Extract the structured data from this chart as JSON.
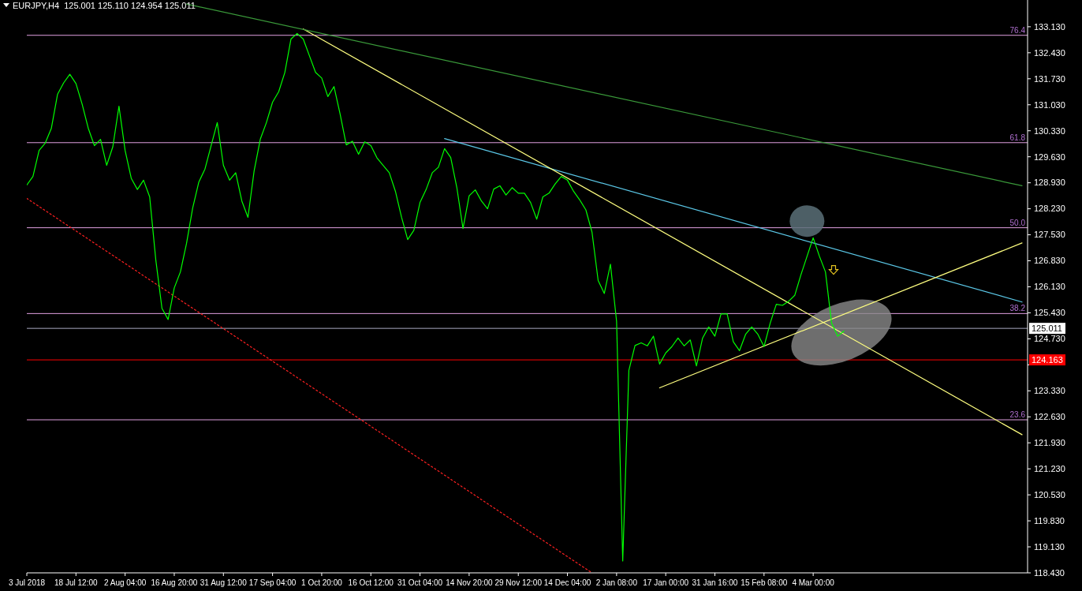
{
  "chart_data": {
    "type": "line",
    "title": "EURJPY,H4  125.001 125.110 124.954 125.011",
    "categories": [
      "3 Jul 2018",
      null,
      null,
      null,
      null,
      null,
      null,
      null,
      "18 Jul 12:00",
      null,
      null,
      null,
      null,
      null,
      null,
      null,
      "2 Aug 04:00",
      null,
      null,
      null,
      null,
      null,
      null,
      null,
      "16 Aug 20:00",
      null,
      null,
      null,
      null,
      null,
      null,
      null,
      "31 Aug 12:00",
      null,
      null,
      null,
      null,
      null,
      null,
      null,
      "17 Sep 04:00",
      null,
      null,
      null,
      null,
      null,
      null,
      null,
      "1 Oct 20:00",
      null,
      null,
      null,
      null,
      null,
      null,
      null,
      "16 Oct 12:00",
      null,
      null,
      null,
      null,
      null,
      null,
      null,
      "31 Oct 04:00",
      null,
      null,
      null,
      null,
      null,
      null,
      null,
      "14 Nov 20:00",
      null,
      null,
      null,
      null,
      null,
      null,
      null,
      "29 Nov 12:00",
      null,
      null,
      null,
      null,
      null,
      null,
      null,
      "14 Dec 04:00",
      null,
      null,
      null,
      null,
      null,
      null,
      null,
      "2 Jan 08:00",
      null,
      null,
      null,
      null,
      null,
      null,
      null,
      "17 Jan 00:00",
      null,
      null,
      null,
      null,
      null,
      null,
      null,
      "31 Jan 16:00",
      null,
      null,
      null,
      null,
      null,
      null,
      null,
      "15 Feb 08:00",
      null,
      null,
      null,
      null,
      null,
      null,
      null,
      "4 Mar 00:00",
      null,
      null,
      null,
      null,
      null,
      null,
      null,
      null,
      null,
      null,
      null,
      null,
      null,
      null,
      null,
      null,
      null,
      null,
      null,
      null,
      null,
      null,
      null,
      null,
      null,
      null,
      null,
      null,
      null,
      null,
      null,
      null,
      null,
      null
    ],
    "ylim": [
      118.43,
      133.85
    ],
    "yticks": [
      {
        "value": 133.13,
        "label": "133.130"
      },
      {
        "value": 132.43,
        "label": "132.430"
      },
      {
        "value": 131.73,
        "label": "131.730"
      },
      {
        "value": 131.03,
        "label": "131.030"
      },
      {
        "value": 130.33,
        "label": "130.330"
      },
      {
        "value": 129.63,
        "label": "129.630"
      },
      {
        "value": 128.93,
        "label": "128.930"
      },
      {
        "value": 128.23,
        "label": "128.230"
      },
      {
        "value": 127.53,
        "label": "127.530"
      },
      {
        "value": 126.83,
        "label": "126.830"
      },
      {
        "value": 126.13,
        "label": "126.130"
      },
      {
        "value": 125.43,
        "label": "125.430"
      },
      {
        "value": 124.73,
        "label": "124.730"
      },
      {
        "value": 124.03,
        "label": null
      },
      {
        "value": 123.33,
        "label": "123.330"
      },
      {
        "value": 122.63,
        "label": "122.630"
      },
      {
        "value": 121.93,
        "label": "121.930"
      },
      {
        "value": 121.23,
        "label": "121.230"
      },
      {
        "value": 120.53,
        "label": "120.530"
      },
      {
        "value": 119.83,
        "label": "119.830"
      },
      {
        "value": 119.13,
        "label": "119.130"
      },
      {
        "value": 118.43,
        "label": "118.430"
      }
    ],
    "series": [
      {
        "color": "#00ff00",
        "values": [
          128.87,
          129.1,
          129.8,
          130.0,
          130.4,
          131.31,
          131.62,
          131.85,
          131.6,
          131.05,
          130.4,
          129.93,
          130.1,
          129.4,
          129.9,
          130.99,
          129.8,
          129.05,
          128.75,
          129.0,
          128.55,
          126.85,
          125.55,
          125.25,
          126.1,
          126.53,
          127.3,
          128.25,
          128.95,
          129.3,
          129.93,
          130.55,
          129.4,
          129.0,
          129.2,
          128.44,
          128.0,
          129.25,
          130.1,
          130.55,
          131.1,
          131.38,
          131.9,
          132.8,
          132.95,
          132.8,
          132.35,
          131.9,
          131.75,
          131.25,
          131.52,
          130.78,
          129.95,
          130.05,
          129.7,
          130.03,
          129.93,
          129.6,
          129.4,
          129.2,
          128.7,
          128.0,
          127.4,
          127.65,
          128.4,
          128.75,
          129.2,
          129.35,
          129.85,
          129.61,
          128.8,
          127.7,
          128.58,
          128.74,
          128.44,
          128.23,
          128.76,
          128.85,
          128.6,
          128.8,
          128.65,
          128.65,
          128.4,
          127.95,
          128.55,
          128.65,
          128.9,
          129.1,
          129.0,
          128.7,
          128.47,
          128.2,
          127.6,
          126.3,
          125.95,
          126.74,
          125.2,
          118.75,
          123.88,
          124.55,
          124.62,
          124.54,
          124.8,
          124.05,
          124.35,
          124.52,
          124.75,
          124.54,
          124.7,
          124.0,
          124.75,
          125.05,
          124.8,
          125.4,
          125.4,
          124.65,
          124.41,
          124.85,
          125.05,
          124.85,
          124.52,
          125.15,
          125.66,
          125.63,
          125.74,
          125.9,
          126.45,
          126.95,
          127.45,
          126.96,
          126.53,
          125.15,
          124.8,
          124.94,
          null,
          null,
          null,
          null,
          null,
          null,
          null,
          null,
          null,
          null,
          null,
          null,
          null,
          null,
          null,
          null,
          null,
          null,
          null,
          null,
          null,
          null,
          null,
          null,
          null,
          null,
          null,
          null,
          null
        ]
      },
      {
        "color": "#3a9a3a",
        "values": [
          null,
          null,
          null,
          null,
          null,
          null,
          null,
          null,
          null,
          null,
          null,
          null,
          null,
          null,
          null,
          null,
          null,
          null,
          null,
          null,
          null,
          null,
          null,
          null,
          null,
          null,
          133.74,
          null,
          null,
          null,
          null,
          null,
          null,
          null,
          null,
          null,
          null,
          null,
          null,
          null,
          null,
          null,
          null,
          null,
          null,
          null,
          null,
          null,
          null,
          null,
          null,
          null,
          null,
          null,
          null,
          null,
          null,
          null,
          null,
          null,
          null,
          null,
          null,
          null,
          null,
          null,
          null,
          null,
          null,
          null,
          null,
          null,
          null,
          null,
          null,
          null,
          null,
          null,
          null,
          null,
          null,
          null,
          null,
          null,
          null,
          null,
          null,
          null,
          null,
          null,
          null,
          null,
          null,
          null,
          null,
          null,
          null,
          null,
          null,
          null,
          null,
          null,
          null,
          null,
          null,
          null,
          null,
          null,
          null,
          null,
          null,
          null,
          null,
          null,
          null,
          null,
          null,
          null,
          null,
          null,
          null,
          null,
          null,
          null,
          null,
          null,
          null,
          null,
          null,
          null,
          null,
          null,
          null,
          null,
          null,
          null,
          null,
          null,
          null,
          null,
          null,
          null,
          null,
          null,
          null,
          null,
          null,
          null,
          null,
          null,
          null,
          null,
          null,
          null,
          null,
          null,
          null,
          null,
          null,
          null,
          null,
          null,
          128.85
        ]
      },
      {
        "color": "#ffff80",
        "values": [
          null,
          null,
          null,
          null,
          null,
          null,
          null,
          null,
          null,
          null,
          null,
          null,
          null,
          null,
          null,
          null,
          null,
          null,
          null,
          null,
          null,
          null,
          null,
          null,
          null,
          null,
          null,
          null,
          null,
          null,
          null,
          null,
          null,
          null,
          null,
          null,
          null,
          null,
          null,
          null,
          null,
          null,
          null,
          null,
          null,
          133.07,
          null,
          null,
          null,
          null,
          null,
          null,
          null,
          null,
          null,
          null,
          null,
          null,
          null,
          null,
          null,
          null,
          null,
          null,
          null,
          null,
          null,
          null,
          null,
          null,
          null,
          null,
          null,
          null,
          null,
          null,
          null,
          null,
          null,
          null,
          null,
          null,
          null,
          null,
          null,
          null,
          null,
          null,
          null,
          null,
          null,
          null,
          null,
          null,
          null,
          null,
          null,
          null,
          null,
          null,
          null,
          null,
          null,
          null,
          null,
          null,
          null,
          null,
          null,
          null,
          null,
          null,
          null,
          null,
          null,
          null,
          null,
          null,
          null,
          null,
          null,
          null,
          null,
          null,
          null,
          null,
          null,
          null,
          null,
          null,
          null,
          null,
          null,
          null,
          null,
          null,
          null,
          null,
          null,
          null,
          null,
          null,
          null,
          null,
          null,
          null,
          null,
          null,
          null,
          null,
          null,
          null,
          null,
          null,
          null,
          null,
          null,
          null,
          null,
          null,
          null,
          null,
          122.15
        ]
      },
      {
        "color": "#ffff80",
        "values": [
          null,
          null,
          null,
          null,
          null,
          null,
          null,
          null,
          null,
          null,
          null,
          null,
          null,
          null,
          null,
          null,
          null,
          null,
          null,
          null,
          null,
          null,
          null,
          null,
          null,
          null,
          null,
          null,
          null,
          null,
          null,
          null,
          null,
          null,
          null,
          null,
          null,
          null,
          null,
          null,
          null,
          null,
          null,
          null,
          null,
          null,
          null,
          null,
          null,
          null,
          null,
          null,
          null,
          null,
          null,
          null,
          null,
          null,
          null,
          null,
          null,
          null,
          null,
          null,
          null,
          null,
          null,
          null,
          null,
          null,
          null,
          null,
          null,
          null,
          null,
          null,
          null,
          null,
          null,
          null,
          null,
          null,
          null,
          null,
          null,
          null,
          null,
          null,
          null,
          null,
          null,
          null,
          null,
          null,
          null,
          null,
          null,
          null,
          null,
          null,
          null,
          null,
          null,
          123.41,
          null,
          null,
          null,
          null,
          null,
          null,
          null,
          null,
          null,
          null,
          null,
          null,
          null,
          null,
          null,
          null,
          null,
          null,
          null,
          null,
          null,
          null,
          null,
          null,
          null,
          null,
          null,
          null,
          null,
          null,
          null,
          null,
          null,
          null,
          null,
          null,
          null,
          null,
          null,
          null,
          null,
          null,
          null,
          null,
          null,
          null,
          null,
          null,
          null,
          null,
          null,
          null,
          null,
          null,
          null,
          null,
          null,
          null,
          127.31
        ]
      },
      {
        "color": "#5bc8e8",
        "values": [
          null,
          null,
          null,
          null,
          null,
          null,
          null,
          null,
          null,
          null,
          null,
          null,
          null,
          null,
          null,
          null,
          null,
          null,
          null,
          null,
          null,
          null,
          null,
          null,
          null,
          null,
          null,
          null,
          null,
          null,
          null,
          null,
          null,
          null,
          null,
          null,
          null,
          null,
          null,
          null,
          null,
          null,
          null,
          null,
          null,
          null,
          null,
          null,
          null,
          null,
          null,
          null,
          null,
          null,
          null,
          null,
          null,
          null,
          null,
          null,
          null,
          null,
          null,
          null,
          null,
          null,
          null,
          null,
          130.12,
          null,
          null,
          null,
          null,
          null,
          null,
          null,
          null,
          null,
          null,
          null,
          null,
          null,
          null,
          null,
          null,
          null,
          null,
          null,
          null,
          null,
          null,
          null,
          null,
          null,
          null,
          null,
          null,
          null,
          null,
          null,
          null,
          null,
          null,
          null,
          null,
          null,
          null,
          null,
          null,
          null,
          null,
          null,
          null,
          null,
          null,
          null,
          null,
          null,
          null,
          null,
          null,
          null,
          null,
          null,
          null,
          null,
          null,
          null,
          null,
          null,
          null,
          null,
          null,
          null,
          null,
          null,
          null,
          null,
          null,
          null,
          null,
          null,
          null,
          null,
          null,
          null,
          null,
          null,
          null,
          null,
          null,
          null,
          null,
          null,
          null,
          null,
          null,
          null,
          null,
          null,
          null,
          null,
          125.72
        ]
      },
      {
        "color": "#ff2020",
        "line_style": "dotted",
        "values": [
          128.51,
          null,
          null,
          null,
          null,
          null,
          null,
          null,
          null,
          null,
          null,
          null,
          null,
          null,
          null,
          null,
          null,
          null,
          null,
          null,
          null,
          null,
          null,
          null,
          null,
          null,
          null,
          null,
          null,
          null,
          null,
          null,
          null,
          null,
          null,
          null,
          null,
          null,
          null,
          null,
          null,
          null,
          null,
          null,
          null,
          null,
          null,
          null,
          null,
          null,
          null,
          null,
          null,
          null,
          null,
          null,
          null,
          null,
          null,
          null,
          null,
          null,
          null,
          null,
          null,
          null,
          null,
          null,
          null,
          null,
          null,
          null,
          null,
          null,
          null,
          null,
          null,
          null,
          null,
          null,
          null,
          null,
          null,
          null,
          null,
          null,
          null,
          null,
          null,
          null,
          null,
          null,
          118.43,
          null,
          null,
          null,
          null,
          null,
          null,
          null,
          null,
          null,
          null,
          null,
          null,
          null,
          null,
          null,
          null,
          null,
          null,
          null,
          null,
          null,
          null,
          null,
          null,
          null,
          null,
          null,
          null,
          null,
          null,
          null,
          null,
          null,
          null,
          null,
          null,
          null,
          null,
          null,
          null,
          null,
          null,
          null,
          null,
          null,
          null,
          null,
          null,
          null,
          null,
          null,
          null,
          null,
          null,
          null,
          null,
          null,
          null,
          null,
          null,
          null,
          null,
          null,
          null,
          null,
          null,
          null,
          null,
          null,
          null
        ]
      }
    ],
    "ref_lines": [
      {
        "axis": "y",
        "value": 132.9,
        "color": "#e0a0e0"
      },
      {
        "axis": "y",
        "value": 130.01,
        "color": "#e0a0e0"
      },
      {
        "axis": "y",
        "value": 127.72,
        "color": "#e0a0e0"
      },
      {
        "axis": "y",
        "value": 125.41,
        "color": "#e0a0e0"
      },
      {
        "axis": "y",
        "value": 122.55,
        "color": "#e0a0e0"
      },
      {
        "axis": "y",
        "value": 125.011,
        "label": "125.011",
        "color": "#a8a8c0"
      },
      {
        "axis": "y",
        "value": 124.163,
        "label": "124.163",
        "color": "#ff0000"
      }
    ],
    "annotations": [
      {
        "text": "76.4",
        "y": 132.9
      },
      {
        "text": "61.8",
        "y": 130.01
      },
      {
        "text": "50.0",
        "y": 127.72
      },
      {
        "text": "38.2",
        "y": 125.41
      },
      {
        "text": "23.6",
        "y": 122.55
      }
    ]
  }
}
